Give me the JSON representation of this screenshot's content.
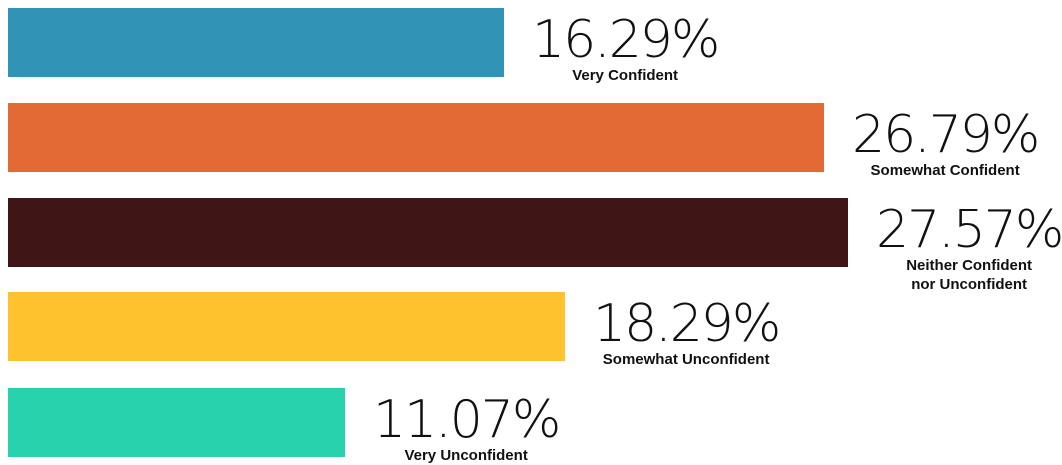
{
  "chart_data": {
    "type": "bar",
    "orientation": "horizontal",
    "categories": [
      "Very Confident",
      "Somewhat Confident",
      "Neither Confident\nnor Unconfident",
      "Somewhat Unconfident",
      "Very Unconfident"
    ],
    "values": [
      16.29,
      26.79,
      27.57,
      18.29,
      11.07
    ],
    "value_labels": [
      "16.29%",
      "26.79%",
      "27.57%",
      "18.29%",
      "11.07%"
    ],
    "colors": [
      "#3194b6",
      "#e36a35",
      "#3e1414",
      "#fec22f",
      "#26d3ad"
    ],
    "unit": "%",
    "xlim": [
      0,
      27.57
    ],
    "grid": false,
    "legend": "none"
  }
}
